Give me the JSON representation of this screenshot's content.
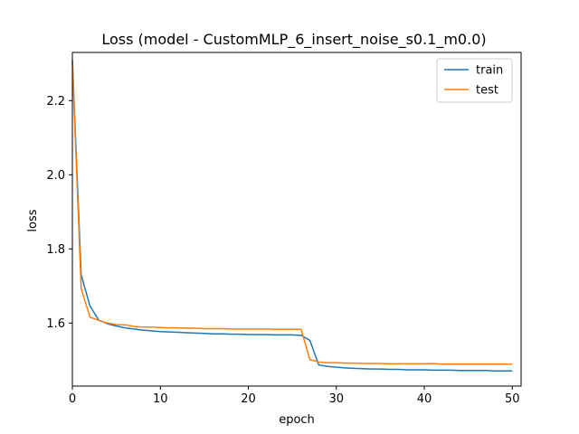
{
  "chart_data": {
    "type": "line",
    "title": "Loss (model - CustomMLP_6_insert_noise_s0.1_m0.0)",
    "xlabel": "epoch",
    "ylabel": "loss",
    "xlim": [
      0,
      51
    ],
    "ylim": [
      1.43,
      2.33
    ],
    "xticks": [
      0,
      10,
      20,
      30,
      40,
      50
    ],
    "yticks": [
      1.6,
      1.8,
      2.0,
      2.2
    ],
    "ytick_labels": [
      "1.6",
      "1.8",
      "2.0",
      "2.2"
    ],
    "grid": false,
    "legend_position": "top-right",
    "x": [
      0,
      1,
      2,
      3,
      4,
      5,
      6,
      7,
      8,
      9,
      10,
      11,
      12,
      13,
      14,
      15,
      16,
      17,
      18,
      19,
      20,
      21,
      22,
      23,
      24,
      25,
      26,
      27,
      28,
      29,
      30,
      31,
      32,
      33,
      34,
      35,
      36,
      37,
      38,
      39,
      40,
      41,
      42,
      43,
      44,
      45,
      46,
      47,
      48,
      49,
      50
    ],
    "series": [
      {
        "name": "train",
        "color": "#1f77b4",
        "values": [
          2.31,
          1.73,
          1.646,
          1.608,
          1.598,
          1.592,
          1.587,
          1.584,
          1.581,
          1.579,
          1.577,
          1.576,
          1.575,
          1.574,
          1.573,
          1.572,
          1.571,
          1.571,
          1.57,
          1.57,
          1.569,
          1.569,
          1.569,
          1.568,
          1.568,
          1.568,
          1.567,
          1.553,
          1.487,
          1.483,
          1.481,
          1.479,
          1.478,
          1.477,
          1.476,
          1.476,
          1.475,
          1.475,
          1.474,
          1.474,
          1.474,
          1.473,
          1.473,
          1.473,
          1.472,
          1.472,
          1.472,
          1.472,
          1.471,
          1.471,
          1.471
        ]
      },
      {
        "name": "test",
        "color": "#ff7f0e",
        "values": [
          2.3,
          1.693,
          1.616,
          1.607,
          1.6,
          1.596,
          1.595,
          1.591,
          1.589,
          1.589,
          1.588,
          1.587,
          1.587,
          1.586,
          1.586,
          1.585,
          1.585,
          1.585,
          1.584,
          1.584,
          1.584,
          1.584,
          1.584,
          1.583,
          1.583,
          1.583,
          1.583,
          1.501,
          1.495,
          1.493,
          1.493,
          1.492,
          1.492,
          1.491,
          1.491,
          1.491,
          1.49,
          1.49,
          1.49,
          1.49,
          1.49,
          1.491,
          1.489,
          1.489,
          1.489,
          1.489,
          1.489,
          1.489,
          1.489,
          1.489,
          1.489
        ]
      }
    ]
  }
}
